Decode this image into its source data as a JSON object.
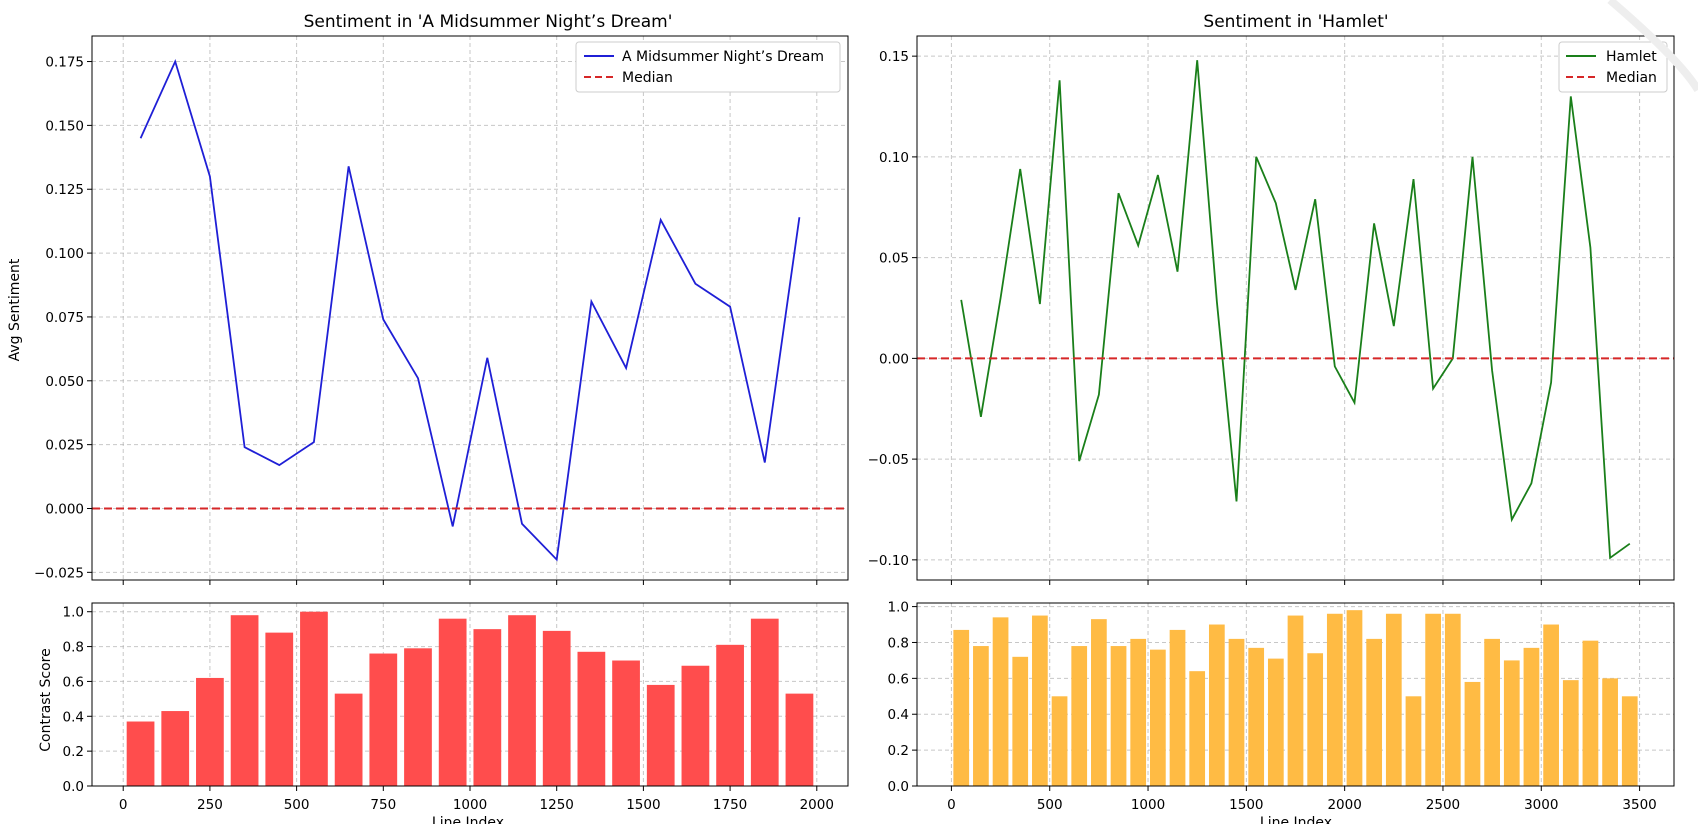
{
  "chart_data": [
    {
      "type": "line",
      "title": "Sentiment in 'A Midsummer Night’s Dream'",
      "xlabel": "",
      "ylabel": "Avg Sentiment",
      "x": [
        50,
        150,
        250,
        350,
        450,
        550,
        650,
        750,
        850,
        950,
        1050,
        1150,
        1250,
        1350,
        1450,
        1550,
        1650,
        1750,
        1850,
        1950
      ],
      "series": [
        {
          "name": "A Midsummer Night’s Dream",
          "color": "#1f1fd6",
          "style": "solid",
          "values": [
            0.145,
            0.175,
            0.13,
            0.024,
            0.017,
            0.026,
            0.134,
            0.074,
            0.051,
            -0.007,
            0.059,
            -0.006,
            -0.02,
            0.081,
            0.055,
            0.113,
            0.088,
            0.079,
            0.018,
            0.114
          ]
        },
        {
          "name": "Median",
          "color": "#d62728",
          "style": "dashed",
          "constant": 0.0
        }
      ],
      "xlim": [
        -90,
        2090
      ],
      "ylim": [
        -0.028,
        0.185
      ],
      "xticks": [
        0,
        250,
        500,
        750,
        1000,
        1250,
        1500,
        1750,
        2000
      ],
      "yticks": [
        -0.025,
        0.0,
        0.025,
        0.05,
        0.075,
        0.1,
        0.125,
        0.15,
        0.175
      ],
      "ytick_labels": [
        "−0.025",
        "0.000",
        "0.025",
        "0.050",
        "0.075",
        "0.100",
        "0.125",
        "0.150",
        "0.175"
      ],
      "grid": true,
      "legend": "top-right"
    },
    {
      "type": "line",
      "title": "Sentiment in 'Hamlet'",
      "xlabel": "",
      "ylabel": "",
      "x": [
        50,
        150,
        250,
        350,
        450,
        550,
        650,
        750,
        850,
        950,
        1050,
        1150,
        1250,
        1350,
        1450,
        1550,
        1650,
        1750,
        1850,
        1950,
        2050,
        2150,
        2250,
        2350,
        2450,
        2550,
        2650,
        2750,
        2850,
        2950,
        3050,
        3150,
        3250,
        3350,
        3450
      ],
      "series": [
        {
          "name": "Hamlet",
          "color": "#1a7f1a",
          "style": "solid",
          "values": [
            0.029,
            -0.029,
            0.03,
            0.094,
            0.027,
            0.138,
            -0.051,
            -0.018,
            0.082,
            0.056,
            0.091,
            0.043,
            0.148,
            0.028,
            -0.071,
            0.1,
            0.077,
            0.034,
            0.079,
            -0.004,
            -0.022,
            0.067,
            0.016,
            0.089,
            -0.015,
            0.0,
            0.1,
            -0.006,
            -0.08,
            -0.062,
            -0.012,
            0.13,
            0.055,
            -0.099,
            -0.092
          ]
        },
        {
          "name": "Median",
          "color": "#d62728",
          "style": "dashed",
          "constant": 0.0
        }
      ],
      "xlim": [
        -175,
        3675
      ],
      "ylim": [
        -0.11,
        0.16
      ],
      "xticks": [
        0,
        500,
        1000,
        1500,
        2000,
        2500,
        3000,
        3500
      ],
      "yticks": [
        -0.1,
        -0.05,
        0.0,
        0.05,
        0.1,
        0.15
      ],
      "ytick_labels": [
        "−0.10",
        "−0.05",
        "0.00",
        "0.05",
        "0.10",
        "0.15"
      ],
      "grid": true,
      "legend": "top-right"
    },
    {
      "type": "bar",
      "title": "",
      "xlabel": "Line Index",
      "ylabel": "Contrast Score",
      "color": "#ff4d4d",
      "x": [
        50,
        150,
        250,
        350,
        450,
        550,
        650,
        750,
        850,
        950,
        1050,
        1150,
        1250,
        1350,
        1450,
        1550,
        1650,
        1750,
        1850,
        1950
      ],
      "bar_width": 80,
      "values": [
        0.37,
        0.43,
        0.62,
        0.98,
        0.88,
        1.0,
        0.53,
        0.76,
        0.79,
        0.96,
        0.9,
        0.98,
        0.89,
        0.77,
        0.72,
        0.58,
        0.69,
        0.81,
        0.96,
        0.53
      ],
      "xlim": [
        -90,
        2090
      ],
      "ylim": [
        0,
        1.05
      ],
      "xticks": [
        0,
        250,
        500,
        750,
        1000,
        1250,
        1500,
        1750,
        2000
      ],
      "yticks": [
        0,
        0.2,
        0.4,
        0.6,
        0.8,
        1.0
      ],
      "ytick_labels": [
        "0.0",
        "0.2",
        "0.4",
        "0.6",
        "0.8",
        "1.0"
      ],
      "grid": true
    },
    {
      "type": "bar",
      "title": "",
      "xlabel": "Line Index",
      "ylabel": "",
      "color": "#ffbb44",
      "x": [
        50,
        150,
        250,
        350,
        450,
        550,
        650,
        750,
        850,
        950,
        1050,
        1150,
        1250,
        1350,
        1450,
        1550,
        1650,
        1750,
        1850,
        1950,
        2050,
        2150,
        2250,
        2350,
        2450,
        2550,
        2650,
        2750,
        2850,
        2950,
        3050,
        3150,
        3250,
        3350,
        3450
      ],
      "bar_width": 80,
      "values": [
        0.87,
        0.78,
        0.94,
        0.72,
        0.95,
        0.5,
        0.78,
        0.93,
        0.78,
        0.82,
        0.76,
        0.87,
        0.64,
        0.9,
        0.82,
        0.77,
        0.71,
        0.95,
        0.74,
        0.96,
        0.98,
        0.82,
        0.96,
        0.5,
        0.96,
        0.96,
        0.58,
        0.82,
        0.7,
        0.77,
        0.9,
        0.59,
        0.81,
        0.6,
        0.5
      ],
      "xlim": [
        -175,
        3675
      ],
      "ylim": [
        0,
        1.02
      ],
      "xticks": [
        0,
        500,
        1000,
        1500,
        2000,
        2500,
        3000,
        3500
      ],
      "yticks": [
        0,
        0.2,
        0.4,
        0.6,
        0.8,
        1.0
      ],
      "ytick_labels": [
        "0.0",
        "0.2",
        "0.4",
        "0.6",
        "0.8",
        "1.0"
      ],
      "grid": true
    }
  ]
}
